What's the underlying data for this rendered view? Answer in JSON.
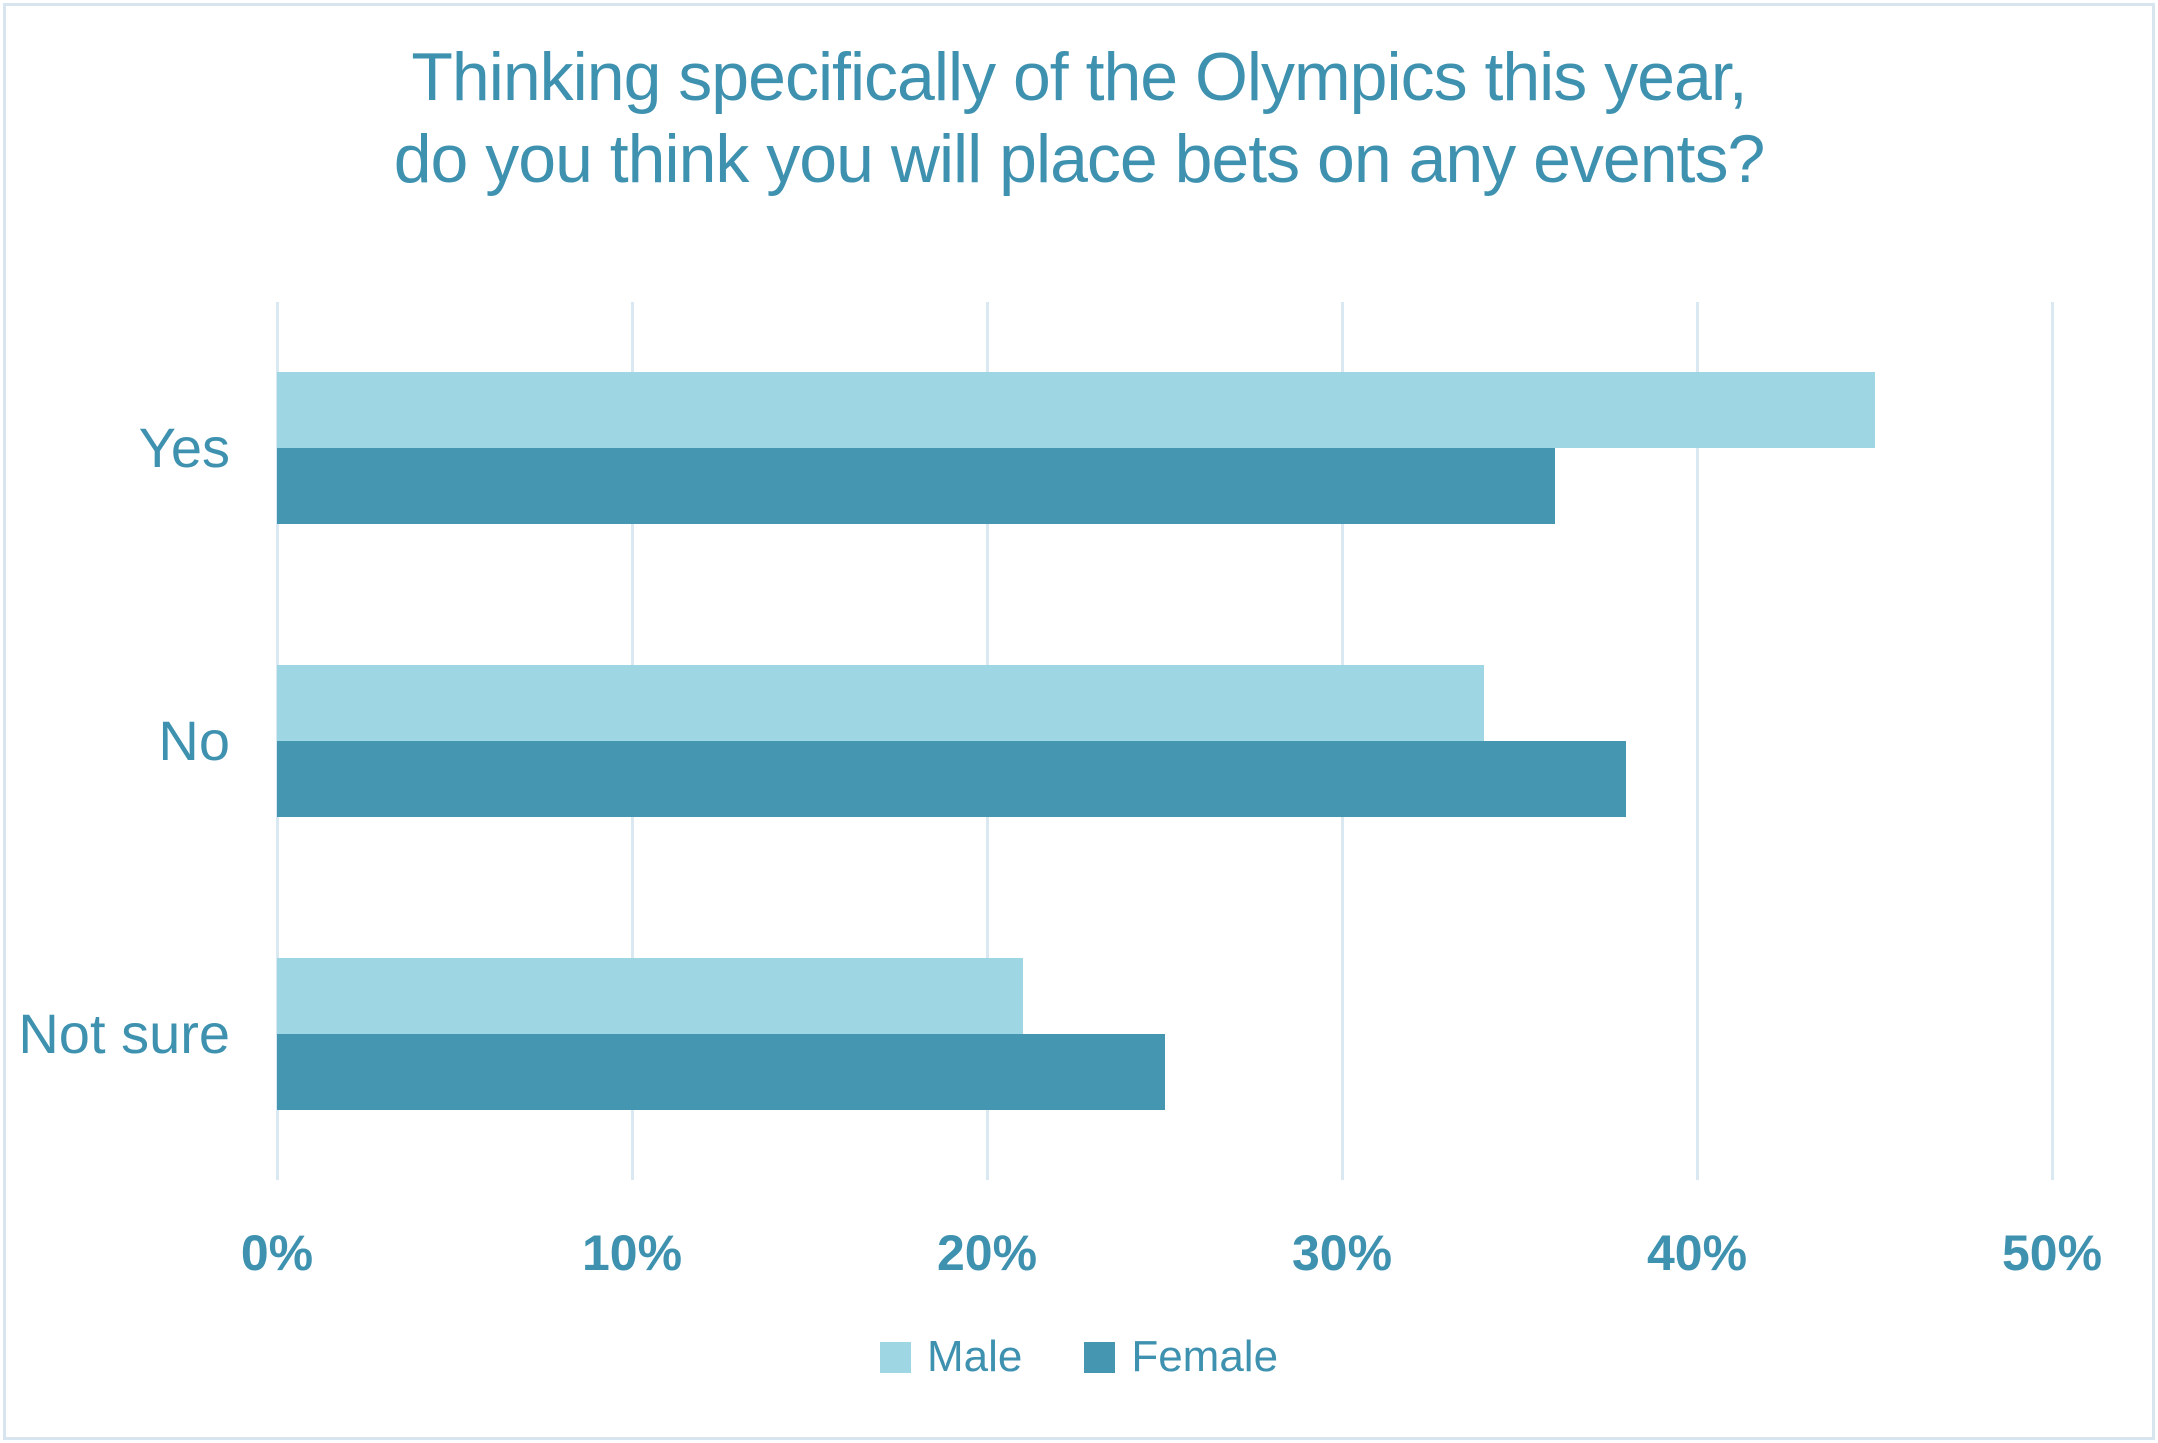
{
  "title": {
    "line1": "Thinking specifically of the Olympics this year,",
    "line2": "do you think you will place bets on any events?",
    "color": "#3e92af"
  },
  "chart_data": {
    "type": "bar",
    "orientation": "horizontal",
    "title": "Thinking specifically of the Olympics this year, do you think you will place bets on any events?",
    "categories": [
      "Yes",
      "No",
      "Not sure"
    ],
    "series": [
      {
        "name": "Male",
        "color": "#9fd6e3",
        "values": [
          45,
          34,
          21
        ]
      },
      {
        "name": "Female",
        "color": "#4496b1",
        "values": [
          36,
          38,
          25
        ]
      }
    ],
    "value_unit": "%",
    "xlabel": "",
    "ylabel": "",
    "x_ticks": [
      "0%",
      "10%",
      "20%",
      "30%",
      "40%",
      "50%"
    ],
    "xlim": [
      0,
      50
    ],
    "grid": true,
    "gridline_color": "#d9e8f1",
    "axis_line_color": "#d9e8f1",
    "tick_label_color": "#3e92af",
    "category_label_color": "#3e92af",
    "legend_position": "bottom"
  },
  "legend": {
    "items": [
      {
        "label": "Male",
        "color": "#9fd6e3"
      },
      {
        "label": "Female",
        "color": "#4496b1"
      }
    ],
    "text_color": "#3e92af"
  },
  "frame": {
    "border_color": "#d8e4ee"
  }
}
